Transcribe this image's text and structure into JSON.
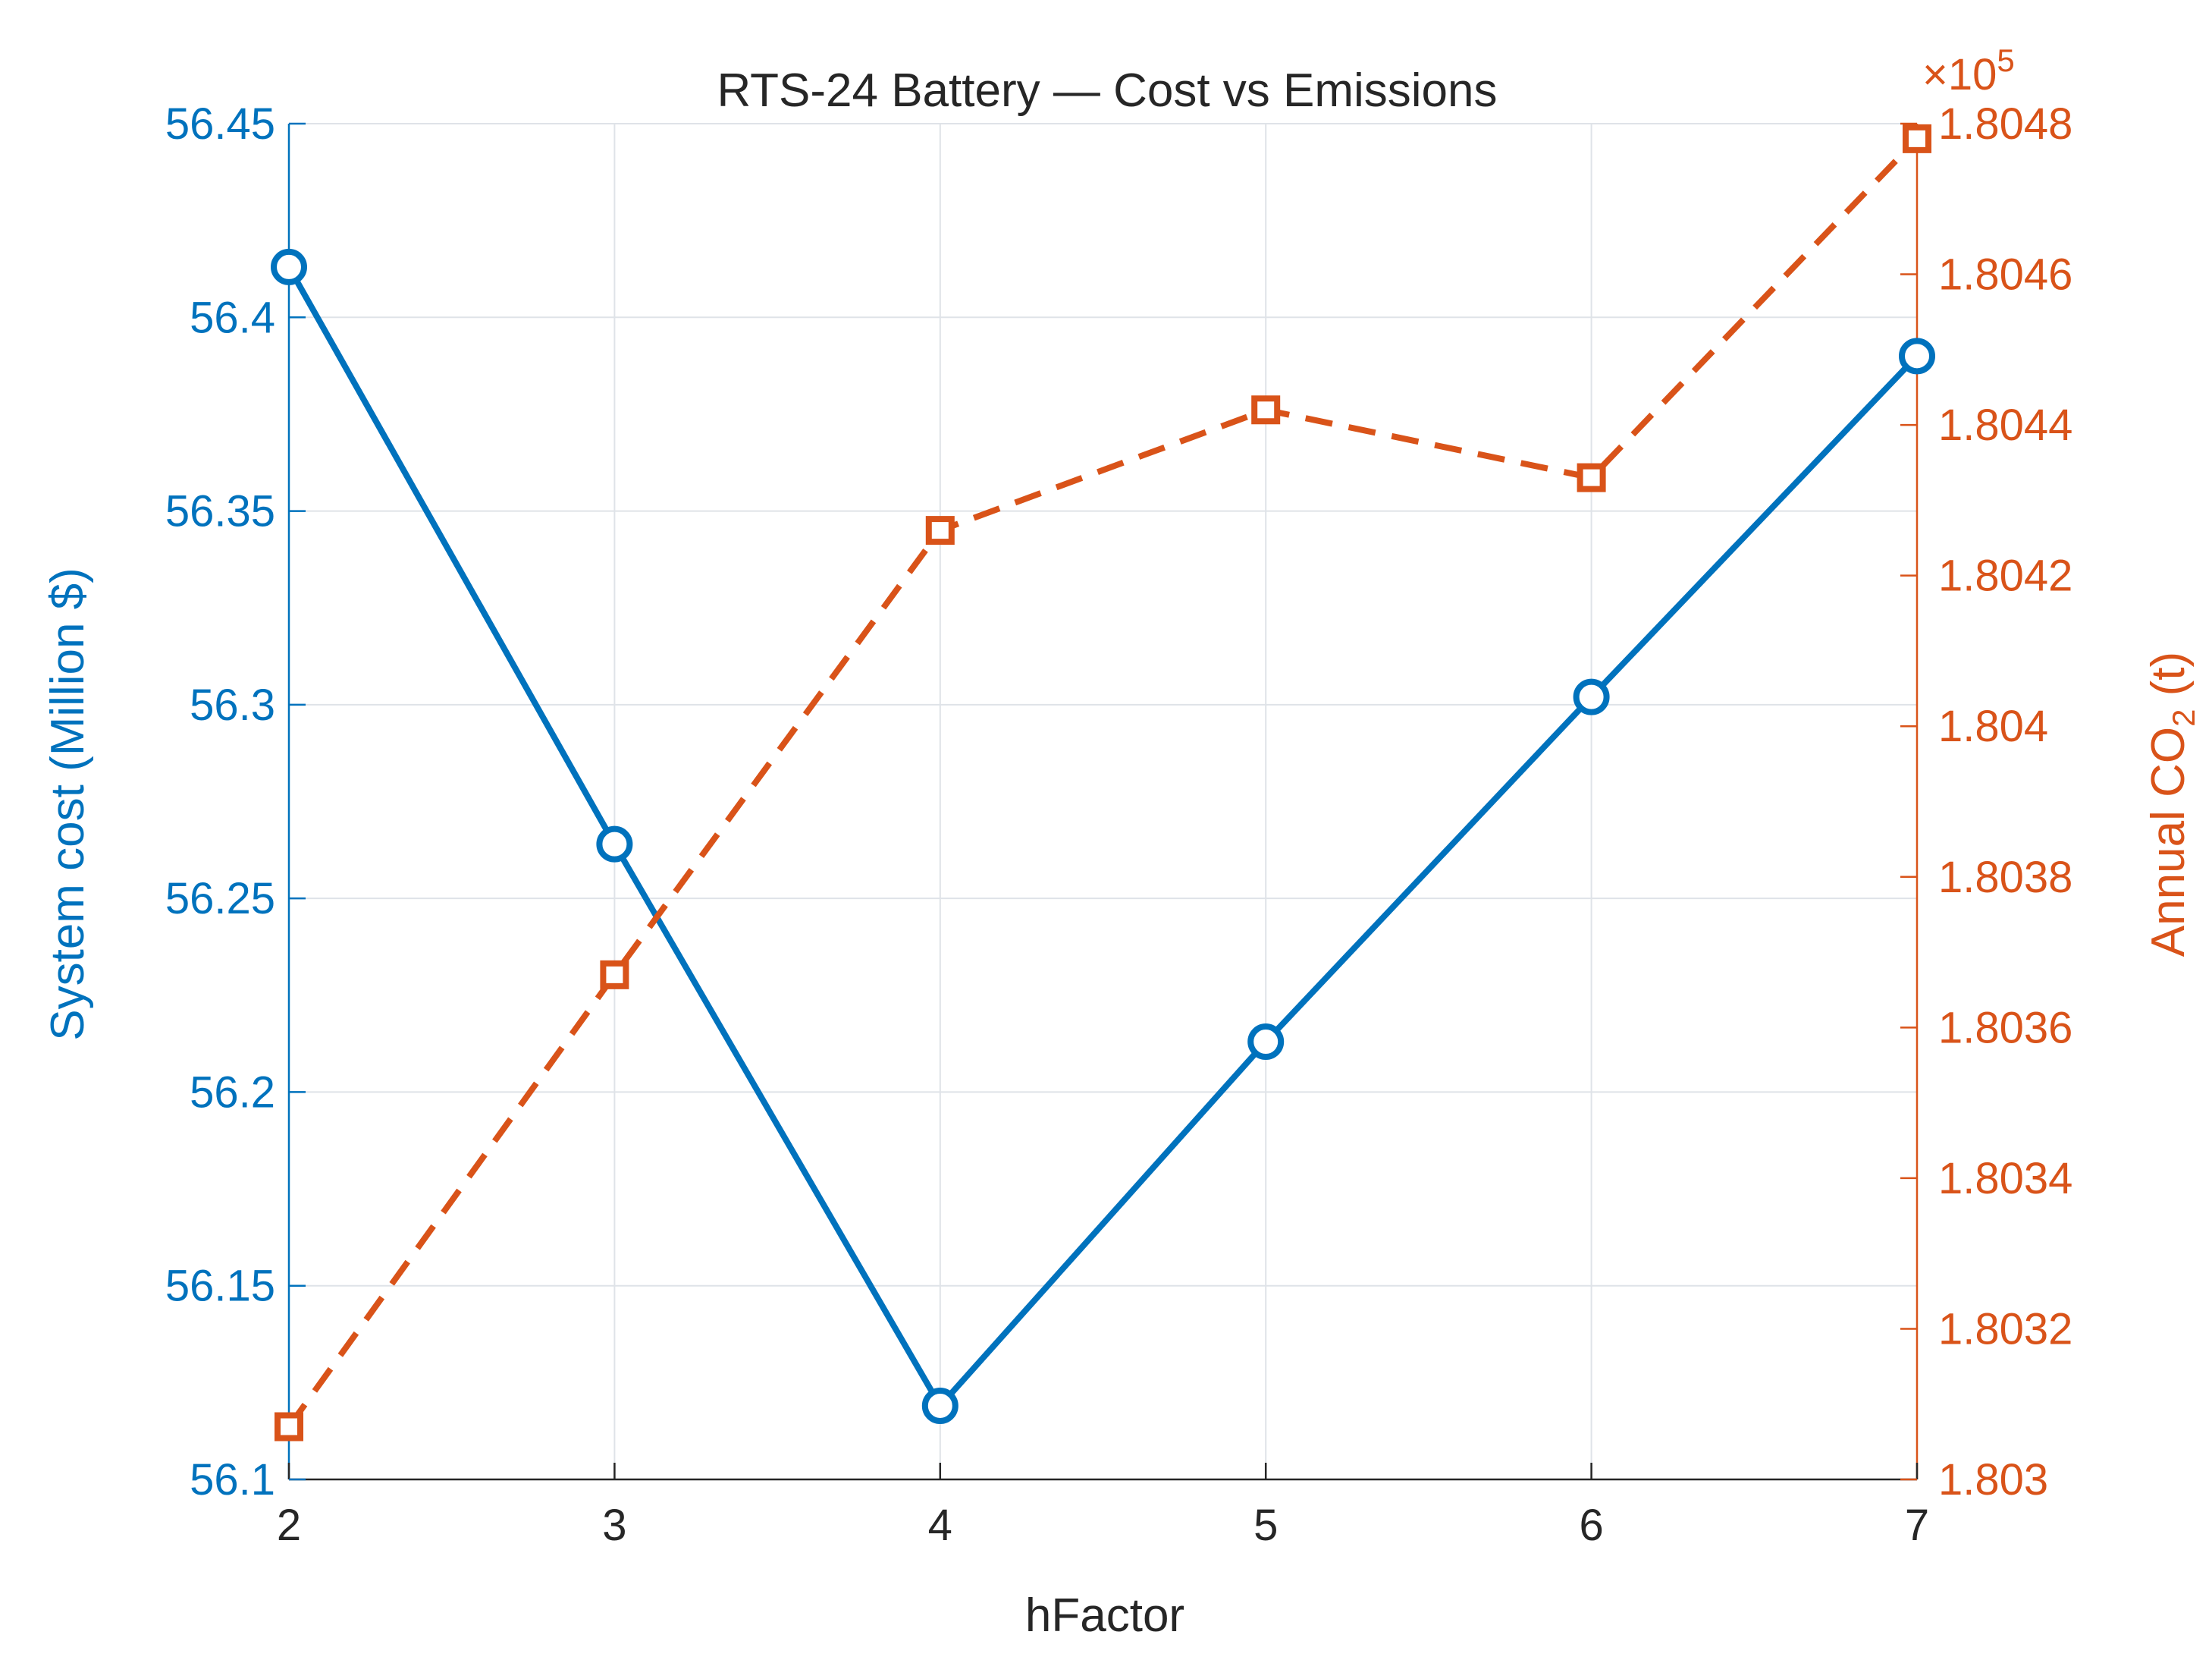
{
  "chart_data": {
    "type": "line",
    "title": "RTS-24 Battery — Cost vs Emissions",
    "xlabel": "hFactor",
    "ylabel_left": "System cost (Million $)",
    "ylabel_right_main": "Annual CO",
    "ylabel_right_sub": "2",
    "ylabel_right_tail": " (t)",
    "right_exponent_base": "×10",
    "right_exponent_power": "5",
    "x": [
      2,
      3,
      4,
      5,
      6,
      7
    ],
    "x_ticks": [
      "2",
      "3",
      "4",
      "5",
      "6",
      "7"
    ],
    "xlim": [
      2,
      7
    ],
    "ylim_left": [
      56.1,
      56.45
    ],
    "y_ticks_left": [
      "56.1",
      "56.15",
      "56.2",
      "56.25",
      "56.3",
      "56.35",
      "56.4",
      "56.45"
    ],
    "ylim_right": [
      1.803,
      1.8048
    ],
    "y_ticks_right": [
      "1.803",
      "1.8032",
      "1.8034",
      "1.8036",
      "1.8038",
      "1.804",
      "1.8042",
      "1.8044",
      "1.8046",
      "1.8048"
    ],
    "grid": true,
    "series": [
      {
        "axis": "left",
        "style": "solid",
        "marker": "circle",
        "color": "#0072bd",
        "values": [
          56.413,
          56.264,
          56.119,
          56.213,
          56.302,
          56.39
        ]
      },
      {
        "axis": "right",
        "style": "dashed",
        "marker": "square",
        "color": "#d95319",
        "values": [
          1.80307,
          1.80367,
          1.80426,
          1.80442,
          1.80433,
          1.80478
        ]
      }
    ]
  }
}
